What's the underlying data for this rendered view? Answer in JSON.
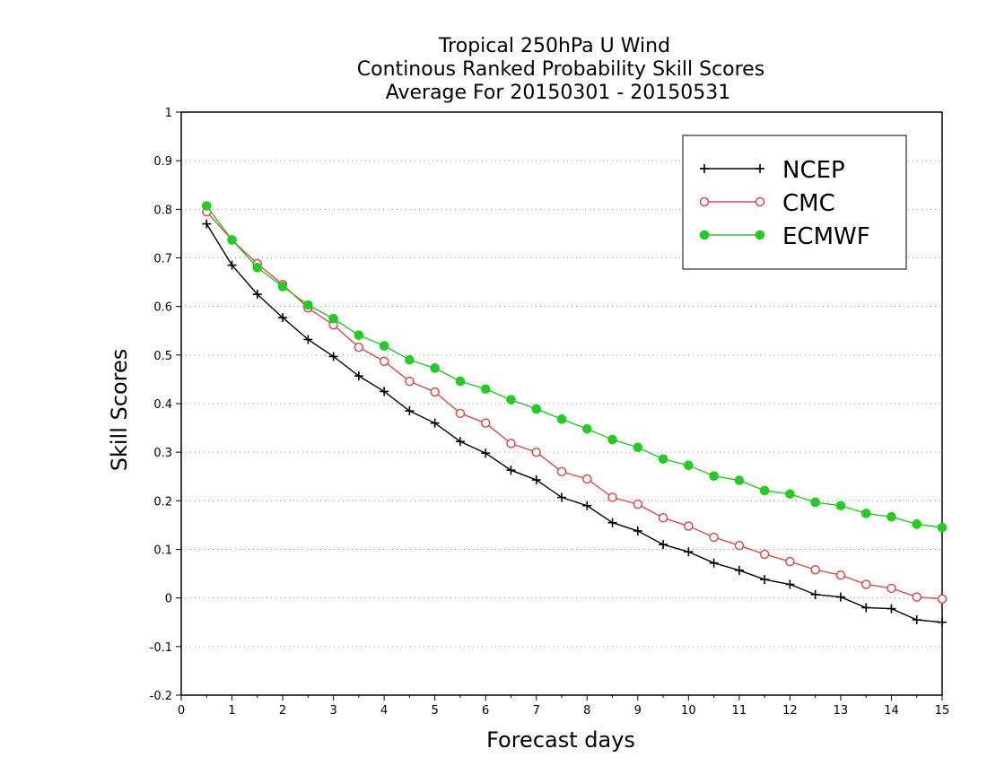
{
  "chart_data": {
    "type": "line",
    "title": [
      "Tropical 250hPa U Wind",
      "Continous Ranked Probability Skill Scores",
      "Average For 20150301 - 20150531"
    ],
    "xlabel": "Forecast days",
    "ylabel": "Skill Scores",
    "xlim": [
      0,
      15
    ],
    "ylim": [
      -0.2,
      1
    ],
    "xticks": [
      "0",
      "1",
      "2",
      "3",
      "4",
      "5",
      "6",
      "7",
      "8",
      "9",
      "10",
      "11",
      "12",
      "13",
      "14",
      "15"
    ],
    "yticks": [
      "-0.2",
      "-0.1",
      "0",
      "0.1",
      "0.2",
      "0.3",
      "0.4",
      "0.5",
      "0.6",
      "0.7",
      "0.8",
      "0.9",
      "1"
    ],
    "grid": "horizontal dotted",
    "legend_position": "top-right",
    "x": [
      0.5,
      1,
      1.5,
      2,
      2.5,
      3,
      3.5,
      4,
      4.5,
      5,
      5.5,
      6,
      6.5,
      7,
      7.5,
      8,
      8.5,
      9,
      9.5,
      10,
      10.5,
      11,
      11.5,
      12,
      12.5,
      13,
      13.5,
      14,
      14.5,
      15
    ],
    "series": [
      {
        "name": "NCEP",
        "color": "#000000",
        "marker": "plus",
        "values": [
          0.77,
          0.685,
          0.625,
          0.577,
          0.532,
          0.497,
          0.457,
          0.425,
          0.385,
          0.36,
          0.322,
          0.298,
          0.263,
          0.243,
          0.207,
          0.19,
          0.155,
          0.138,
          0.11,
          0.095,
          0.072,
          0.057,
          0.038,
          0.028,
          0.007,
          0.002,
          -0.02,
          -0.022,
          -0.045,
          -0.05
        ]
      },
      {
        "name": "CMC",
        "color": "#e34848",
        "marker": "open-circle",
        "values": [
          0.795,
          0.737,
          0.688,
          0.645,
          0.597,
          0.562,
          0.516,
          0.487,
          0.446,
          0.424,
          0.38,
          0.36,
          0.318,
          0.3,
          0.26,
          0.245,
          0.207,
          0.193,
          0.165,
          0.148,
          0.125,
          0.108,
          0.09,
          0.075,
          0.058,
          0.047,
          0.028,
          0.02,
          0.002,
          -0.002
        ]
      },
      {
        "name": "ECMWF",
        "color": "#22cc22",
        "marker": "filled-circle",
        "values": [
          0.807,
          0.737,
          0.68,
          0.641,
          0.603,
          0.575,
          0.541,
          0.519,
          0.49,
          0.473,
          0.446,
          0.43,
          0.408,
          0.389,
          0.368,
          0.348,
          0.326,
          0.31,
          0.286,
          0.273,
          0.251,
          0.242,
          0.221,
          0.214,
          0.197,
          0.19,
          0.174,
          0.167,
          0.152,
          0.145
        ]
      }
    ]
  }
}
